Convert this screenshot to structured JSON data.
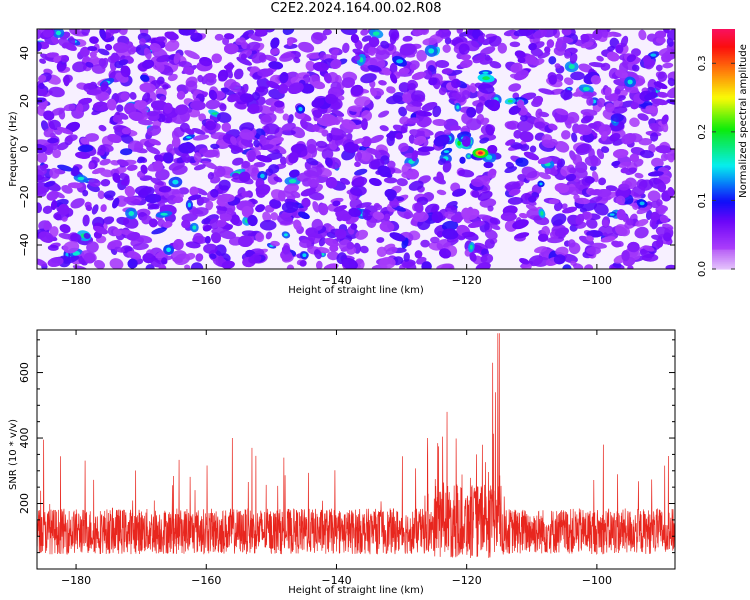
{
  "title": "C2E2.2024.164.00.02.R08",
  "chart_data": [
    {
      "type": "heatmap",
      "xlabel": "Height of straight line (km)",
      "ylabel": "Frequency (Hz)",
      "xlim": [
        -186,
        -88
      ],
      "ylim": [
        -50,
        50
      ],
      "xticks": [
        -180,
        -160,
        -140,
        -120,
        -100
      ],
      "yticks": [
        -40,
        -20,
        0,
        20,
        40
      ],
      "colorbar": {
        "label": "Normalized spectral amplitude",
        "range": [
          0.0,
          0.35
        ],
        "ticks": [
          0.0,
          0.1,
          0.2,
          0.3
        ]
      },
      "features": {
        "background_level": 0.06,
        "hotspot": {
          "x": -120.5,
          "y": 0,
          "peak": 0.34
        },
        "vertical_gaps_x": [
          -114.5,
          -125
        ]
      }
    },
    {
      "type": "line",
      "xlabel": "Height of straight line (km)",
      "ylabel": "SNR (10 * v/v)",
      "xlim": [
        -186,
        -88
      ],
      "ylim": [
        0,
        730
      ],
      "xticks": [
        -180,
        -160,
        -140,
        -120,
        -100
      ],
      "yticks": [
        200,
        400,
        600
      ],
      "series": [
        {
          "color": "#e8261e",
          "baseline_mean": 115,
          "baseline_spread": 70,
          "typical_peak": 300,
          "max_peak": {
            "x": -115,
            "y": 720
          },
          "enhanced_region": [
            -125,
            -114
          ],
          "notable_peaks": [
            {
              "x": -185,
              "y": 395
            },
            {
              "x": -156,
              "y": 400
            },
            {
              "x": -153,
              "y": 370
            },
            {
              "x": -126,
              "y": 400
            },
            {
              "x": -123,
              "y": 480
            },
            {
              "x": -116,
              "y": 630
            },
            {
              "x": -115.2,
              "y": 720
            },
            {
              "x": -115.6,
              "y": 540
            },
            {
              "x": -99,
              "y": 380
            },
            {
              "x": -89,
              "y": 345
            }
          ]
        }
      ]
    }
  ]
}
